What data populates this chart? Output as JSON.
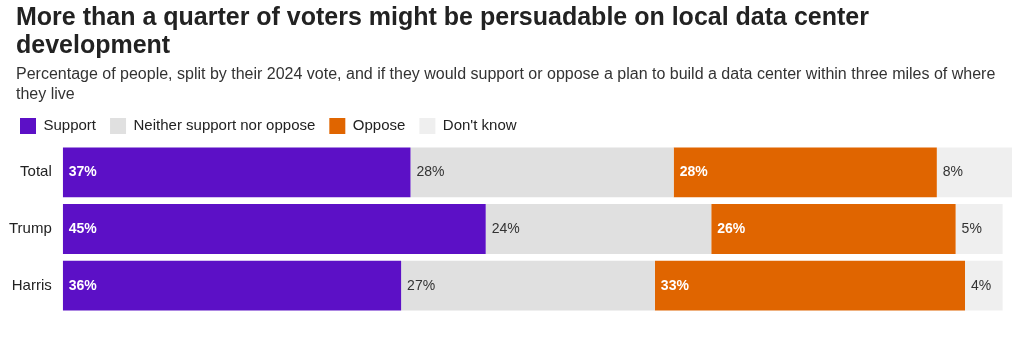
{
  "chart_data": {
    "type": "bar",
    "orientation": "horizontal",
    "stacked": true,
    "title": "More than a quarter of voters might be persuadable on local data center development",
    "subtitle": "Percentage of people, split by their 2024 vote, and if they would support or oppose a plan to build a data center within three miles of where they live",
    "categories": [
      "Total",
      "Trump",
      "Harris"
    ],
    "series": [
      {
        "name": "Support",
        "color": "#5c10c6",
        "values": [
          37,
          45,
          36
        ],
        "value_labels": [
          "37%",
          "45%",
          "36%"
        ]
      },
      {
        "name": "Neither support nor oppose",
        "color": "#e0e0e0",
        "values": [
          28,
          24,
          27
        ],
        "value_labels": [
          "28%",
          "24%",
          "27%"
        ]
      },
      {
        "name": "Oppose",
        "color": "#e06500",
        "values": [
          28,
          26,
          33
        ],
        "value_labels": [
          "28%",
          "26%",
          "33%"
        ]
      },
      {
        "name": "Don't know",
        "color": "#efefef",
        "values": [
          8,
          5,
          4
        ],
        "value_labels": [
          "8%",
          "5%",
          "4%"
        ]
      }
    ],
    "legend": "top left",
    "tick_labels": "y"
  }
}
